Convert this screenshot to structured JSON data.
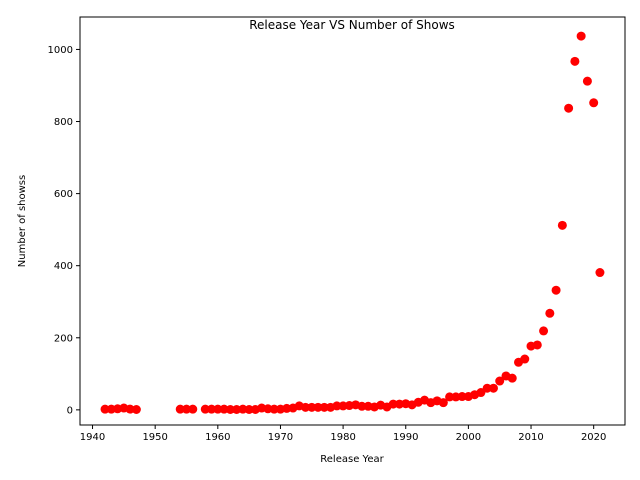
{
  "chart_data": {
    "type": "scatter",
    "title": "Release Year VS Number of Shows",
    "xlabel": "Release Year",
    "ylabel": "Number of showss",
    "xlim": [
      1938,
      2025
    ],
    "ylim": [
      -42,
      1090
    ],
    "xticks": [
      1940,
      1950,
      1960,
      1970,
      1980,
      1990,
      2000,
      2010,
      2020
    ],
    "xtick_labels": [
      "1940",
      "1950",
      "1960",
      "1970",
      "1980",
      "1990",
      "2000",
      "2010",
      "2020"
    ],
    "yticks": [
      0,
      200,
      400,
      600,
      800,
      1000
    ],
    "ytick_labels": [
      "0",
      "200",
      "400",
      "600",
      "800",
      "1000"
    ],
    "grid": false,
    "marker_color": "#ff0000",
    "series": [
      {
        "x": [
          1942,
          1943,
          1944,
          1945,
          1946,
          1947,
          1954,
          1955,
          1956,
          1958,
          1959,
          1960,
          1961,
          1962,
          1963,
          1964,
          1965,
          1966,
          1967,
          1968,
          1969,
          1970,
          1971,
          1972,
          1973,
          1974,
          1975,
          1976,
          1977,
          1978,
          1979,
          1980,
          1981,
          1982,
          1983,
          1984,
          1985,
          1986,
          1987,
          1988,
          1989,
          1990,
          1991,
          1992,
          1993,
          1994,
          1995,
          1996,
          1997,
          1998,
          1999,
          2000,
          2001,
          2002,
          2003,
          2004,
          2005,
          2006,
          2007,
          2008,
          2009,
          2010,
          2011,
          2012,
          2013,
          2014,
          2015,
          2016,
          2017,
          2018,
          2019,
          2020,
          2021
        ],
        "y": [
          2,
          2,
          3,
          5,
          2,
          1,
          2,
          2,
          2,
          2,
          2,
          2,
          2,
          1,
          1,
          2,
          1,
          1,
          5,
          3,
          2,
          2,
          4,
          5,
          11,
          7,
          7,
          7,
          7,
          7,
          11,
          11,
          12,
          14,
          10,
          10,
          8,
          13,
          8,
          16,
          16,
          17,
          14,
          21,
          27,
          20,
          25,
          20,
          36,
          36,
          37,
          37,
          42,
          48,
          60,
          60,
          80,
          94,
          88,
          132,
          141,
          177,
          180,
          219,
          268,
          332,
          512,
          837,
          967,
          1037,
          912,
          852,
          381
        ]
      }
    ]
  }
}
